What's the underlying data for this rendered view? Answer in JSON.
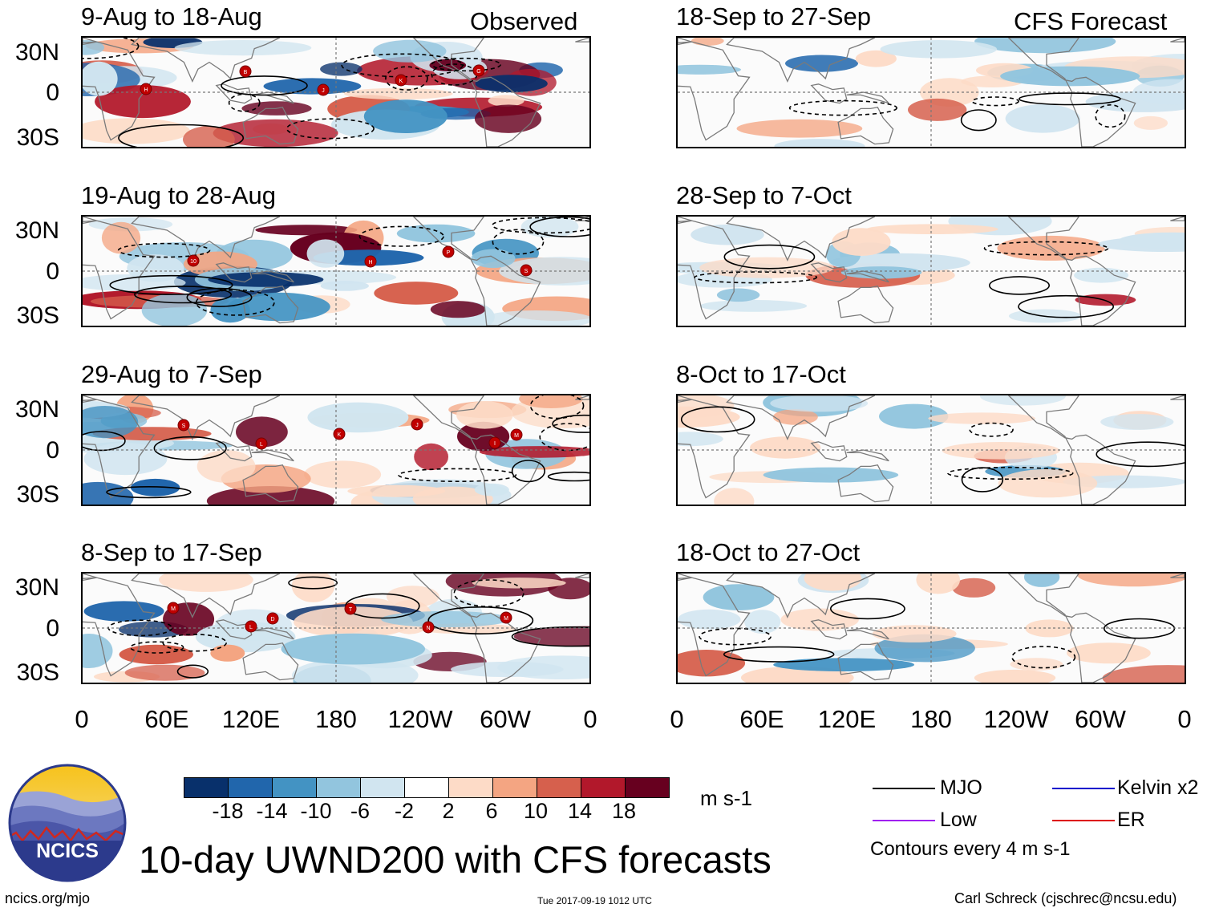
{
  "header": {
    "observed_label": "Observed",
    "forecast_label": "CFS Forecast"
  },
  "observed_panels": [
    {
      "title": "9-Aug to 18-Aug",
      "storms": [
        "B",
        "J",
        "K",
        "G",
        "H"
      ]
    },
    {
      "title": "19-Aug to 28-Aug",
      "storms": [
        "H",
        "P",
        "S",
        "10"
      ]
    },
    {
      "title": "29-Aug to 7-Sep",
      "storms": [
        "M",
        "S",
        "L",
        "K",
        "J",
        "I"
      ]
    },
    {
      "title": "8-Sep to 17-Sep",
      "storms": [
        "D",
        "T",
        "N",
        "M",
        "M",
        "L"
      ]
    }
  ],
  "forecast_panels": [
    {
      "title": "18-Sep to 27-Sep"
    },
    {
      "title": "28-Sep to 7-Oct"
    },
    {
      "title": "8-Oct to 17-Oct"
    },
    {
      "title": "18-Oct to 27-Oct"
    }
  ],
  "lat_labels": [
    "30N",
    "0",
    "30S"
  ],
  "lon_labels": [
    "0",
    "60E",
    "120E",
    "180",
    "120W",
    "60W",
    "0"
  ],
  "colorbar": {
    "colors": [
      "#08306b",
      "#2166ac",
      "#4393c3",
      "#92c5de",
      "#d1e5f0",
      "#ffffff",
      "#fddbc7",
      "#f4a582",
      "#d6604d",
      "#b2182b",
      "#67001f"
    ],
    "ticks": [
      "-18",
      "-14",
      "-10",
      "-6",
      "-2",
      "2",
      "6",
      "10",
      "14",
      "18"
    ],
    "units": "m s-1"
  },
  "legend": {
    "items": [
      {
        "label": "MJO",
        "color": "#000000"
      },
      {
        "label": "Kelvin x2",
        "color": "#0000cc"
      },
      {
        "label": "Low",
        "color": "#a020f0"
      },
      {
        "label": "ER",
        "color": "#dd0000"
      }
    ],
    "contour_note": "Contours every 4 m s-1"
  },
  "footer": {
    "main_title": "10-day UWND200 with CFS forecasts",
    "url": "ncics.org/mjo",
    "timestamp": "Tue 2017-09-19 1012 UTC",
    "author": "Carl Schreck (cjschrec@ncsu.edu)",
    "logo_text": "NCICS"
  }
}
